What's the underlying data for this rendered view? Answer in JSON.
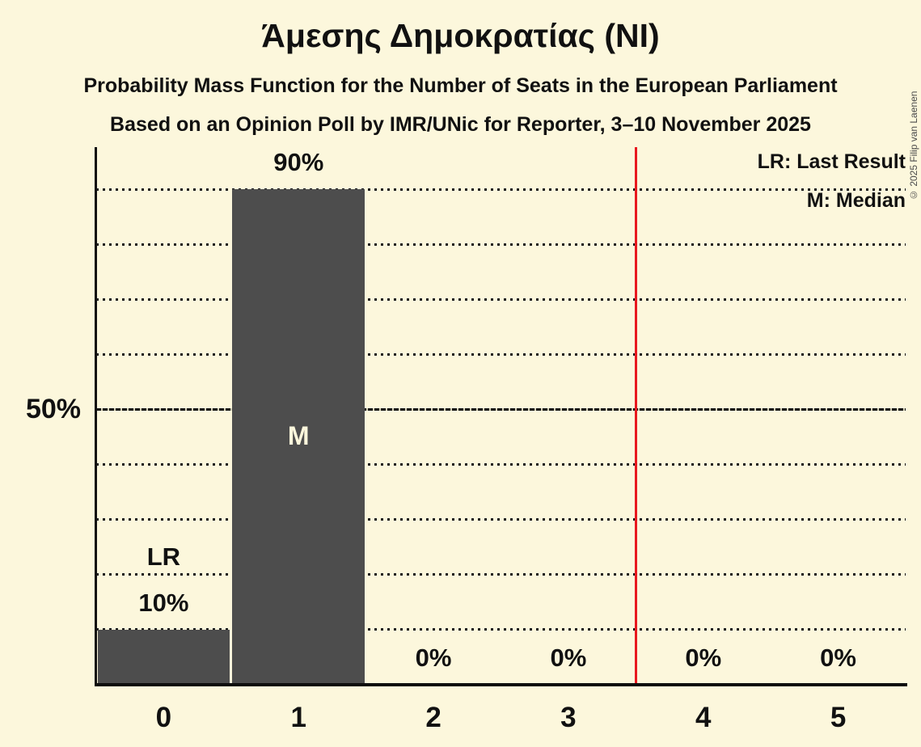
{
  "header": {
    "title": "Άμεσης Δημοκρατίας (NI)",
    "subtitle_line1": "Probability Mass Function for the Number of Seats in the European Parliament",
    "subtitle_line2": "Based on an Opinion Poll by IMR/UNic for Reporter, 3–10 November 2025"
  },
  "copyright": "© 2025 Filip van Laenen",
  "legend": {
    "last_result": "LR: Last Result",
    "median": "M: Median"
  },
  "y_axis": {
    "tick_label": "50%"
  },
  "chart_data": {
    "type": "bar",
    "title": "Άμεσης Δημοκρατίας (NI)",
    "categories": [
      "0",
      "1",
      "2",
      "3",
      "4",
      "5"
    ],
    "values": [
      10,
      90,
      0,
      0,
      0,
      0
    ],
    "bar_value_labels": [
      "10%",
      "90%",
      "0%",
      "0%",
      "0%",
      "0%"
    ],
    "ylim": [
      0,
      100
    ],
    "gridline_step_percent": 10,
    "highlighted_gridline_percent": 50,
    "y_tick_labels": [
      "50%"
    ],
    "legend_position": "top-right",
    "annotations": {
      "last_result_seat": 0,
      "last_result_label": "LR",
      "median_seat": 1,
      "median_label": "M",
      "red_line_x": 3.5
    },
    "colors": {
      "background": "#FCF7DC",
      "bar": "#4D4D4D",
      "text": "#111111",
      "red_line": "#E8191F",
      "inside_bar_label": "#FCF7DC",
      "axis": "#0C0C0C"
    }
  }
}
